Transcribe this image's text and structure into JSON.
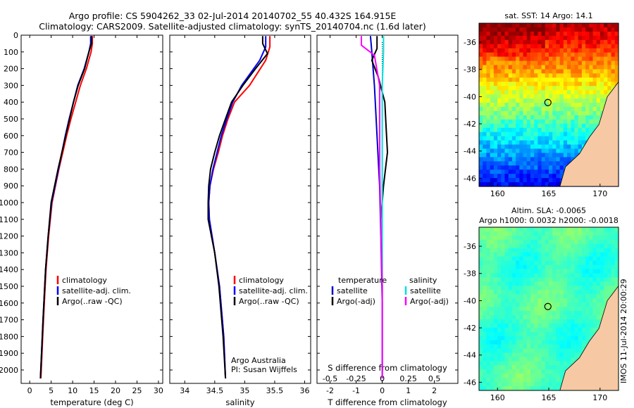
{
  "header": {
    "line1": "Argo profile: CS 5904262_33 02-Jul-2014 20140702_55 40.432S 164.915E",
    "line2": "Climatology: CARS2009. Satellite-adjusted climatology: synTS_20140704.nc (1.6d later)"
  },
  "chart_data": [
    {
      "type": "line",
      "xlabel": "temperature (deg C)",
      "ylabel": "",
      "xlim": [
        -2,
        31
      ],
      "ylim": [
        2080,
        0
      ],
      "xticks": [
        "0",
        "5",
        "10",
        "15",
        "20",
        "25",
        "30"
      ],
      "yticks": [
        "0",
        "100",
        "200",
        "300",
        "400",
        "500",
        "600",
        "700",
        "800",
        "900",
        "1000",
        "1100",
        "1200",
        "1300",
        "1400",
        "1500",
        "1600",
        "1700",
        "1800",
        "1900",
        "2000"
      ],
      "legend": [
        "climatology",
        "satellite-adj. clim.",
        "Argo(..raw -QC)"
      ],
      "series": [
        {
          "name": "climatology",
          "color": "#ff0000",
          "x": [
            14.6,
            14.6,
            14.3,
            13.2,
            11.8,
            10.7,
            9.6,
            8.6,
            7.7,
            6.8,
            6.0,
            5.2,
            4.4,
            3.8,
            3.2,
            2.6
          ],
          "y": [
            5,
            50,
            100,
            200,
            300,
            400,
            500,
            600,
            700,
            800,
            900,
            1000,
            1200,
            1400,
            1700,
            2050
          ]
        },
        {
          "name": "satellite-adj. clim.",
          "color": "#0000ff",
          "x": [
            14.2,
            14.2,
            13.8,
            12.7,
            11.2,
            10.2,
            9.2,
            8.3,
            7.5,
            6.7,
            5.9,
            5.1,
            4.3,
            3.7,
            3.1,
            2.5
          ],
          "y": [
            5,
            50,
            100,
            200,
            300,
            400,
            500,
            600,
            700,
            800,
            900,
            1000,
            1200,
            1400,
            1700,
            2050
          ]
        },
        {
          "name": "Argo(..raw -QC)",
          "color": "#000000",
          "x": [
            14.4,
            14.4,
            13.8,
            12.8,
            11.3,
            10.2,
            9.3,
            8.4,
            7.5,
            6.6,
            5.8,
            5.0,
            4.3,
            3.7,
            3.1,
            2.5
          ],
          "y": [
            5,
            50,
            100,
            200,
            300,
            400,
            500,
            600,
            700,
            800,
            900,
            1000,
            1200,
            1400,
            1700,
            2050
          ]
        }
      ]
    },
    {
      "type": "line",
      "xlabel": "salinity",
      "ylabel": "",
      "xlim": [
        33.75,
        36.1
      ],
      "ylim": [
        2080,
        0
      ],
      "xticks": [
        "34",
        "34.5",
        "35",
        "35.5",
        "36"
      ],
      "legend": [
        "climatology",
        "satellite-adj. clim.",
        "Argo(..raw -QC)"
      ],
      "annotation": [
        "Argo Australia",
        "PI: Susan Wijffels"
      ],
      "series": [
        {
          "name": "climatology",
          "color": "#ff0000",
          "x": [
            35.42,
            35.42,
            35.35,
            35.08,
            34.83,
            34.72,
            34.63,
            34.56,
            34.48,
            34.42,
            34.4,
            34.41,
            34.5,
            34.58,
            34.65,
            34.68
          ],
          "y": [
            5,
            70,
            150,
            300,
            400,
            500,
            600,
            700,
            800,
            900,
            1000,
            1100,
            1300,
            1500,
            1800,
            2050
          ]
        },
        {
          "name": "satellite-adj. clim.",
          "color": "#0000ff",
          "x": [
            35.35,
            35.35,
            35.25,
            34.95,
            34.8,
            34.7,
            34.61,
            34.54,
            34.47,
            34.42,
            34.4,
            34.41,
            34.5,
            34.58,
            34.65,
            34.68
          ],
          "y": [
            5,
            70,
            150,
            300,
            400,
            500,
            600,
            700,
            800,
            900,
            1000,
            1100,
            1300,
            1500,
            1800,
            2050
          ]
        },
        {
          "name": "Argo(..raw -QC)",
          "color": "#000000",
          "x": [
            35.3,
            35.3,
            35.38,
            35.18,
            34.97,
            34.78,
            34.68,
            34.58,
            34.5,
            34.43,
            34.4,
            34.39,
            34.39,
            34.5,
            34.57,
            34.64,
            34.68
          ],
          "y": [
            5,
            50,
            110,
            200,
            300,
            400,
            500,
            600,
            700,
            800,
            900,
            1000,
            1100,
            1300,
            1500,
            1800,
            2050
          ]
        }
      ]
    },
    {
      "type": "line",
      "xlabel": "T difference from climatology",
      "xlabel2": "S difference from climatology",
      "xlim": [
        -2.5,
        2.9
      ],
      "ylim": [
        2080,
        0
      ],
      "xticks": [
        "-2",
        "-1",
        "0",
        "1",
        "2"
      ],
      "xticks2": [
        "-0.5",
        "-0.25",
        "0",
        "0.25",
        "0.5"
      ],
      "legend_headers": [
        "temperature",
        "salinity"
      ],
      "legend": [
        "satellite",
        "Argo(-adj)",
        "satellite",
        "Argo(-adj)"
      ],
      "series": [
        {
          "name": "satellite",
          "color": "#0000cc",
          "x": [
            -0.45,
            -0.4,
            -0.3,
            -0.2,
            -0.1,
            -0.05,
            0.0,
            0.0
          ],
          "y": [
            5,
            100,
            300,
            600,
            900,
            1200,
            1600,
            2050
          ]
        },
        {
          "name": "Argo(-adj)",
          "color": "#000000",
          "x": [
            -0.2,
            -0.2,
            -0.4,
            -0.15,
            0.1,
            0.15,
            0.2,
            0.05,
            -0.05,
            0.0,
            0.0
          ],
          "y": [
            5,
            80,
            150,
            250,
            400,
            550,
            700,
            900,
            1100,
            1500,
            2050
          ]
        },
        {
          "name": "satellite",
          "color": "#00e0e0",
          "x": [
            0.05,
            0.05,
            0.0,
            0.0,
            0.0,
            0.0
          ],
          "y": [
            5,
            100,
            300,
            800,
            1500,
            2050
          ]
        },
        {
          "name": "Argo(-adj)",
          "color": "#ff00ff",
          "x": [
            -0.8,
            -0.8,
            -0.3,
            -0.1,
            -0.1,
            0.0,
            0.0
          ],
          "y": [
            5,
            60,
            120,
            300,
            800,
            1500,
            2050
          ]
        }
      ]
    }
  ],
  "maps": {
    "sst_title": "sat. SST: 14 Argo: 14.1",
    "sla_title1": "Altim. SLA: -0.0065",
    "sla_title2": "Argo h1000: 0.0032 h2000: -0.0018",
    "lat_ticks": [
      "-36",
      "-38",
      "-40",
      "-42",
      "-44",
      "-46"
    ],
    "lon_ticks": [
      "160",
      "165",
      "170"
    ]
  },
  "stamp": "IMOS 11-Jul-2014 20:00:29"
}
